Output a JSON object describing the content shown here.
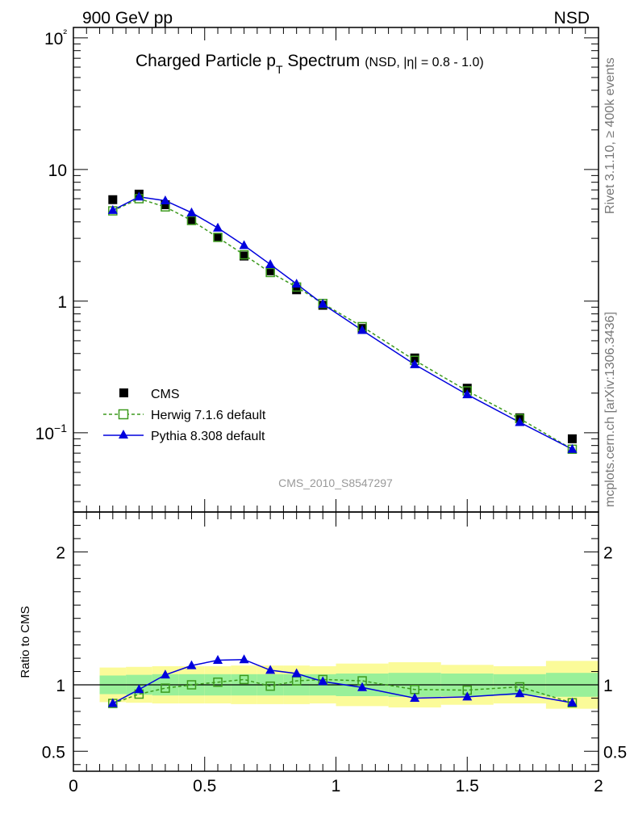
{
  "header": {
    "left": "900 GeV pp",
    "right": "NSD"
  },
  "side_text": {
    "top": "Rivet 3.1.10, ≥ 400k events",
    "bottom": "mcplots.cern.ch [arXiv:1306.3436]"
  },
  "watermark": "CMS_2010_S8547297",
  "title": {
    "main": "Charged Particle p",
    "sub": "T",
    "main2": " Spectrum",
    "small": "(NSD, |η| = 0.8 - 1.0)"
  },
  "ratio_ylabel": "Ratio to CMS",
  "colors": {
    "data": "#000000",
    "herwig": "#3d9a1e",
    "pythia": "#0000dd",
    "band_inner": "#99f099",
    "band_outer": "#fbfb99"
  },
  "chart_data": [
    {
      "type": "scatter",
      "yscale": "log",
      "xlim": [
        0,
        2
      ],
      "ylim": [
        0.025,
        120
      ],
      "y_tick_labels": [
        "10−1",
        "1",
        "10",
        "10²"
      ],
      "legend": {
        "placement": "bottom-left",
        "entries": [
          "CMS",
          "Herwig 7.1.6 default",
          "Pythia 8.308 default"
        ]
      },
      "x": [
        0.15,
        0.25,
        0.35,
        0.45,
        0.55,
        0.65,
        0.75,
        0.85,
        0.95,
        1.1,
        1.3,
        1.5,
        1.7,
        1.9
      ],
      "series": [
        {
          "name": "CMS",
          "marker": "square",
          "values": [
            5.9,
            6.5,
            5.4,
            4.1,
            3.05,
            2.2,
            1.7,
            1.22,
            0.93,
            0.62,
            0.37,
            0.218,
            0.13,
            0.09
          ]
        },
        {
          "name": "Herwig 7.1.6 default",
          "marker": "open-square",
          "line": "dashed",
          "values": [
            4.85,
            6.0,
            5.2,
            4.1,
            3.05,
            2.25,
            1.65,
            1.28,
            0.96,
            0.64,
            0.355,
            0.208,
            0.128,
            0.075
          ]
        },
        {
          "name": "Pythia 8.308 default",
          "marker": "triangle",
          "line": "solid",
          "values": [
            4.9,
            6.2,
            5.8,
            4.7,
            3.6,
            2.65,
            1.9,
            1.35,
            0.95,
            0.6,
            0.33,
            0.195,
            0.12,
            0.075
          ]
        }
      ]
    },
    {
      "type": "line",
      "xlim": [
        0,
        2
      ],
      "ylim": [
        0.35,
        2.3
      ],
      "ylabel": "Ratio to CMS",
      "x_tick_labels": [
        "0",
        "0.5",
        "1",
        "1.5",
        "2"
      ],
      "y_tick_labels": [
        "0.5",
        "1",
        "2"
      ],
      "x": [
        0.15,
        0.25,
        0.35,
        0.45,
        0.55,
        0.65,
        0.75,
        0.85,
        0.95,
        1.1,
        1.3,
        1.5,
        1.7,
        1.9
      ],
      "bands": [
        {
          "x0": 0.1,
          "x1": 0.2,
          "outer": [
            0.87,
            1.13
          ],
          "inner": [
            0.93,
            1.07
          ]
        },
        {
          "x0": 0.2,
          "x1": 0.3,
          "outer": [
            0.865,
            1.135
          ],
          "inner": [
            0.925,
            1.075
          ]
        },
        {
          "x0": 0.3,
          "x1": 0.4,
          "outer": [
            0.86,
            1.14
          ],
          "inner": [
            0.92,
            1.08
          ]
        },
        {
          "x0": 0.4,
          "x1": 0.5,
          "outer": [
            0.86,
            1.14
          ],
          "inner": [
            0.92,
            1.08
          ]
        },
        {
          "x0": 0.5,
          "x1": 0.6,
          "outer": [
            0.86,
            1.14
          ],
          "inner": [
            0.92,
            1.08
          ]
        },
        {
          "x0": 0.6,
          "x1": 0.7,
          "outer": [
            0.855,
            1.145
          ],
          "inner": [
            0.92,
            1.08
          ]
        },
        {
          "x0": 0.7,
          "x1": 0.8,
          "outer": [
            0.855,
            1.145
          ],
          "inner": [
            0.92,
            1.08
          ]
        },
        {
          "x0": 0.8,
          "x1": 0.9,
          "outer": [
            0.855,
            1.145
          ],
          "inner": [
            0.92,
            1.08
          ]
        },
        {
          "x0": 0.9,
          "x1": 1.0,
          "outer": [
            0.86,
            1.14
          ],
          "inner": [
            0.92,
            1.08
          ]
        },
        {
          "x0": 1.0,
          "x1": 1.2,
          "outer": [
            0.84,
            1.16
          ],
          "inner": [
            0.915,
            1.085
          ]
        },
        {
          "x0": 1.2,
          "x1": 1.4,
          "outer": [
            0.83,
            1.17
          ],
          "inner": [
            0.91,
            1.09
          ]
        },
        {
          "x0": 1.4,
          "x1": 1.6,
          "outer": [
            0.85,
            1.15
          ],
          "inner": [
            0.915,
            1.085
          ]
        },
        {
          "x0": 1.6,
          "x1": 1.8,
          "outer": [
            0.86,
            1.14
          ],
          "inner": [
            0.92,
            1.08
          ]
        },
        {
          "x0": 1.8,
          "x1": 2.0,
          "outer": [
            0.82,
            1.18
          ],
          "inner": [
            0.91,
            1.09
          ]
        }
      ],
      "series": [
        {
          "name": "Herwig 7.1.6 default",
          "values": [
            0.86,
            0.93,
            0.975,
            1.0,
            1.02,
            1.04,
            0.99,
            1.03,
            1.04,
            1.03,
            0.965,
            0.96,
            0.985,
            0.865
          ]
        },
        {
          "name": "Pythia 8.308 default",
          "values": [
            0.86,
            0.965,
            1.075,
            1.145,
            1.185,
            1.19,
            1.11,
            1.085,
            1.025,
            0.98,
            0.9,
            0.91,
            0.935,
            0.865
          ]
        }
      ]
    }
  ]
}
